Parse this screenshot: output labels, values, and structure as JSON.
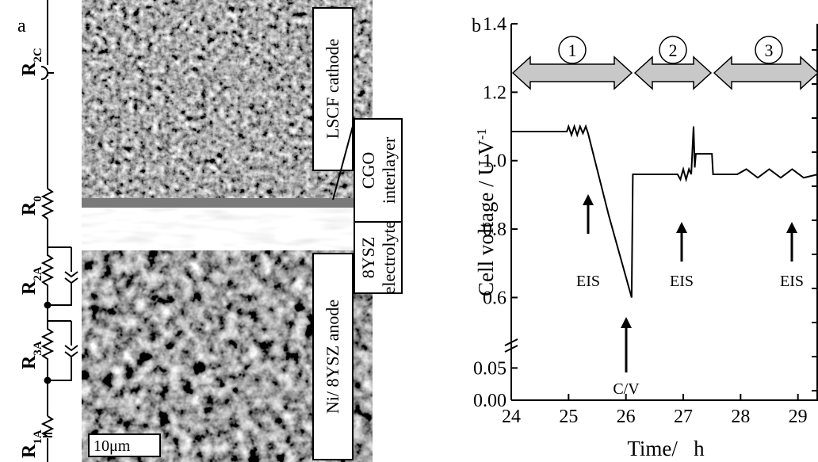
{
  "panel_a": {
    "label": "a",
    "circuit": [
      {
        "symbol": "R",
        "sub": "2C"
      },
      {
        "symbol": "R",
        "sub": "0"
      },
      {
        "symbol": "R",
        "sub": "2A"
      },
      {
        "symbol": "R",
        "sub": "3A"
      },
      {
        "symbol": "R",
        "sub": "1A"
      }
    ],
    "layers": [
      {
        "lines": [
          "LSCF  cathode"
        ]
      },
      {
        "lines": [
          "CGO",
          "interlayer"
        ]
      },
      {
        "lines": [
          "8YSZ",
          "electrolyte"
        ]
      },
      {
        "lines": [
          "Ni/ 8YSZ anode"
        ]
      }
    ],
    "scale_bar": "10μm"
  },
  "chart_data": {
    "type": "line",
    "panel_label": "b",
    "xlabel": "Time/   h",
    "ylabel": "Cell voltage / U V",
    "ylabel_sup": "-1",
    "x": [
      24.0,
      24.97,
      25.0,
      25.05,
      25.1,
      25.15,
      25.2,
      25.25,
      25.3,
      25.34,
      25.7,
      26.1,
      26.12,
      26.9,
      26.95,
      27.0,
      27.05,
      27.1,
      27.14,
      27.18,
      27.2,
      27.22,
      27.5,
      27.52,
      27.94,
      28.1,
      28.3,
      28.5,
      28.7,
      28.9,
      29.1,
      29.35
    ],
    "values": [
      1.085,
      1.085,
      1.1,
      1.075,
      1.1,
      1.075,
      1.1,
      1.08,
      1.1,
      1.08,
      0.84,
      0.6,
      0.96,
      0.96,
      0.945,
      0.975,
      0.945,
      0.975,
      0.96,
      1.1,
      0.98,
      1.02,
      1.02,
      0.96,
      0.96,
      0.975,
      0.95,
      0.975,
      0.95,
      0.975,
      0.95,
      0.96
    ],
    "color": "#000000",
    "xlim": [
      24,
      29.35
    ],
    "xticks": [
      24,
      25,
      26,
      27,
      28,
      29
    ],
    "ylim": [
      0,
      1.4
    ],
    "ybreak": [
      0.08,
      0.52
    ],
    "yticks": [
      {
        "value": 0,
        "label": "0.00"
      },
      0.05,
      0.6,
      0.8,
      {
        "value": 1.0,
        "label": "1.0"
      },
      1.2,
      1.4
    ],
    "stages": [
      "1",
      "2",
      "3"
    ],
    "annotations": [
      "EIS",
      "C/V",
      "EIS",
      "EIS"
    ]
  }
}
